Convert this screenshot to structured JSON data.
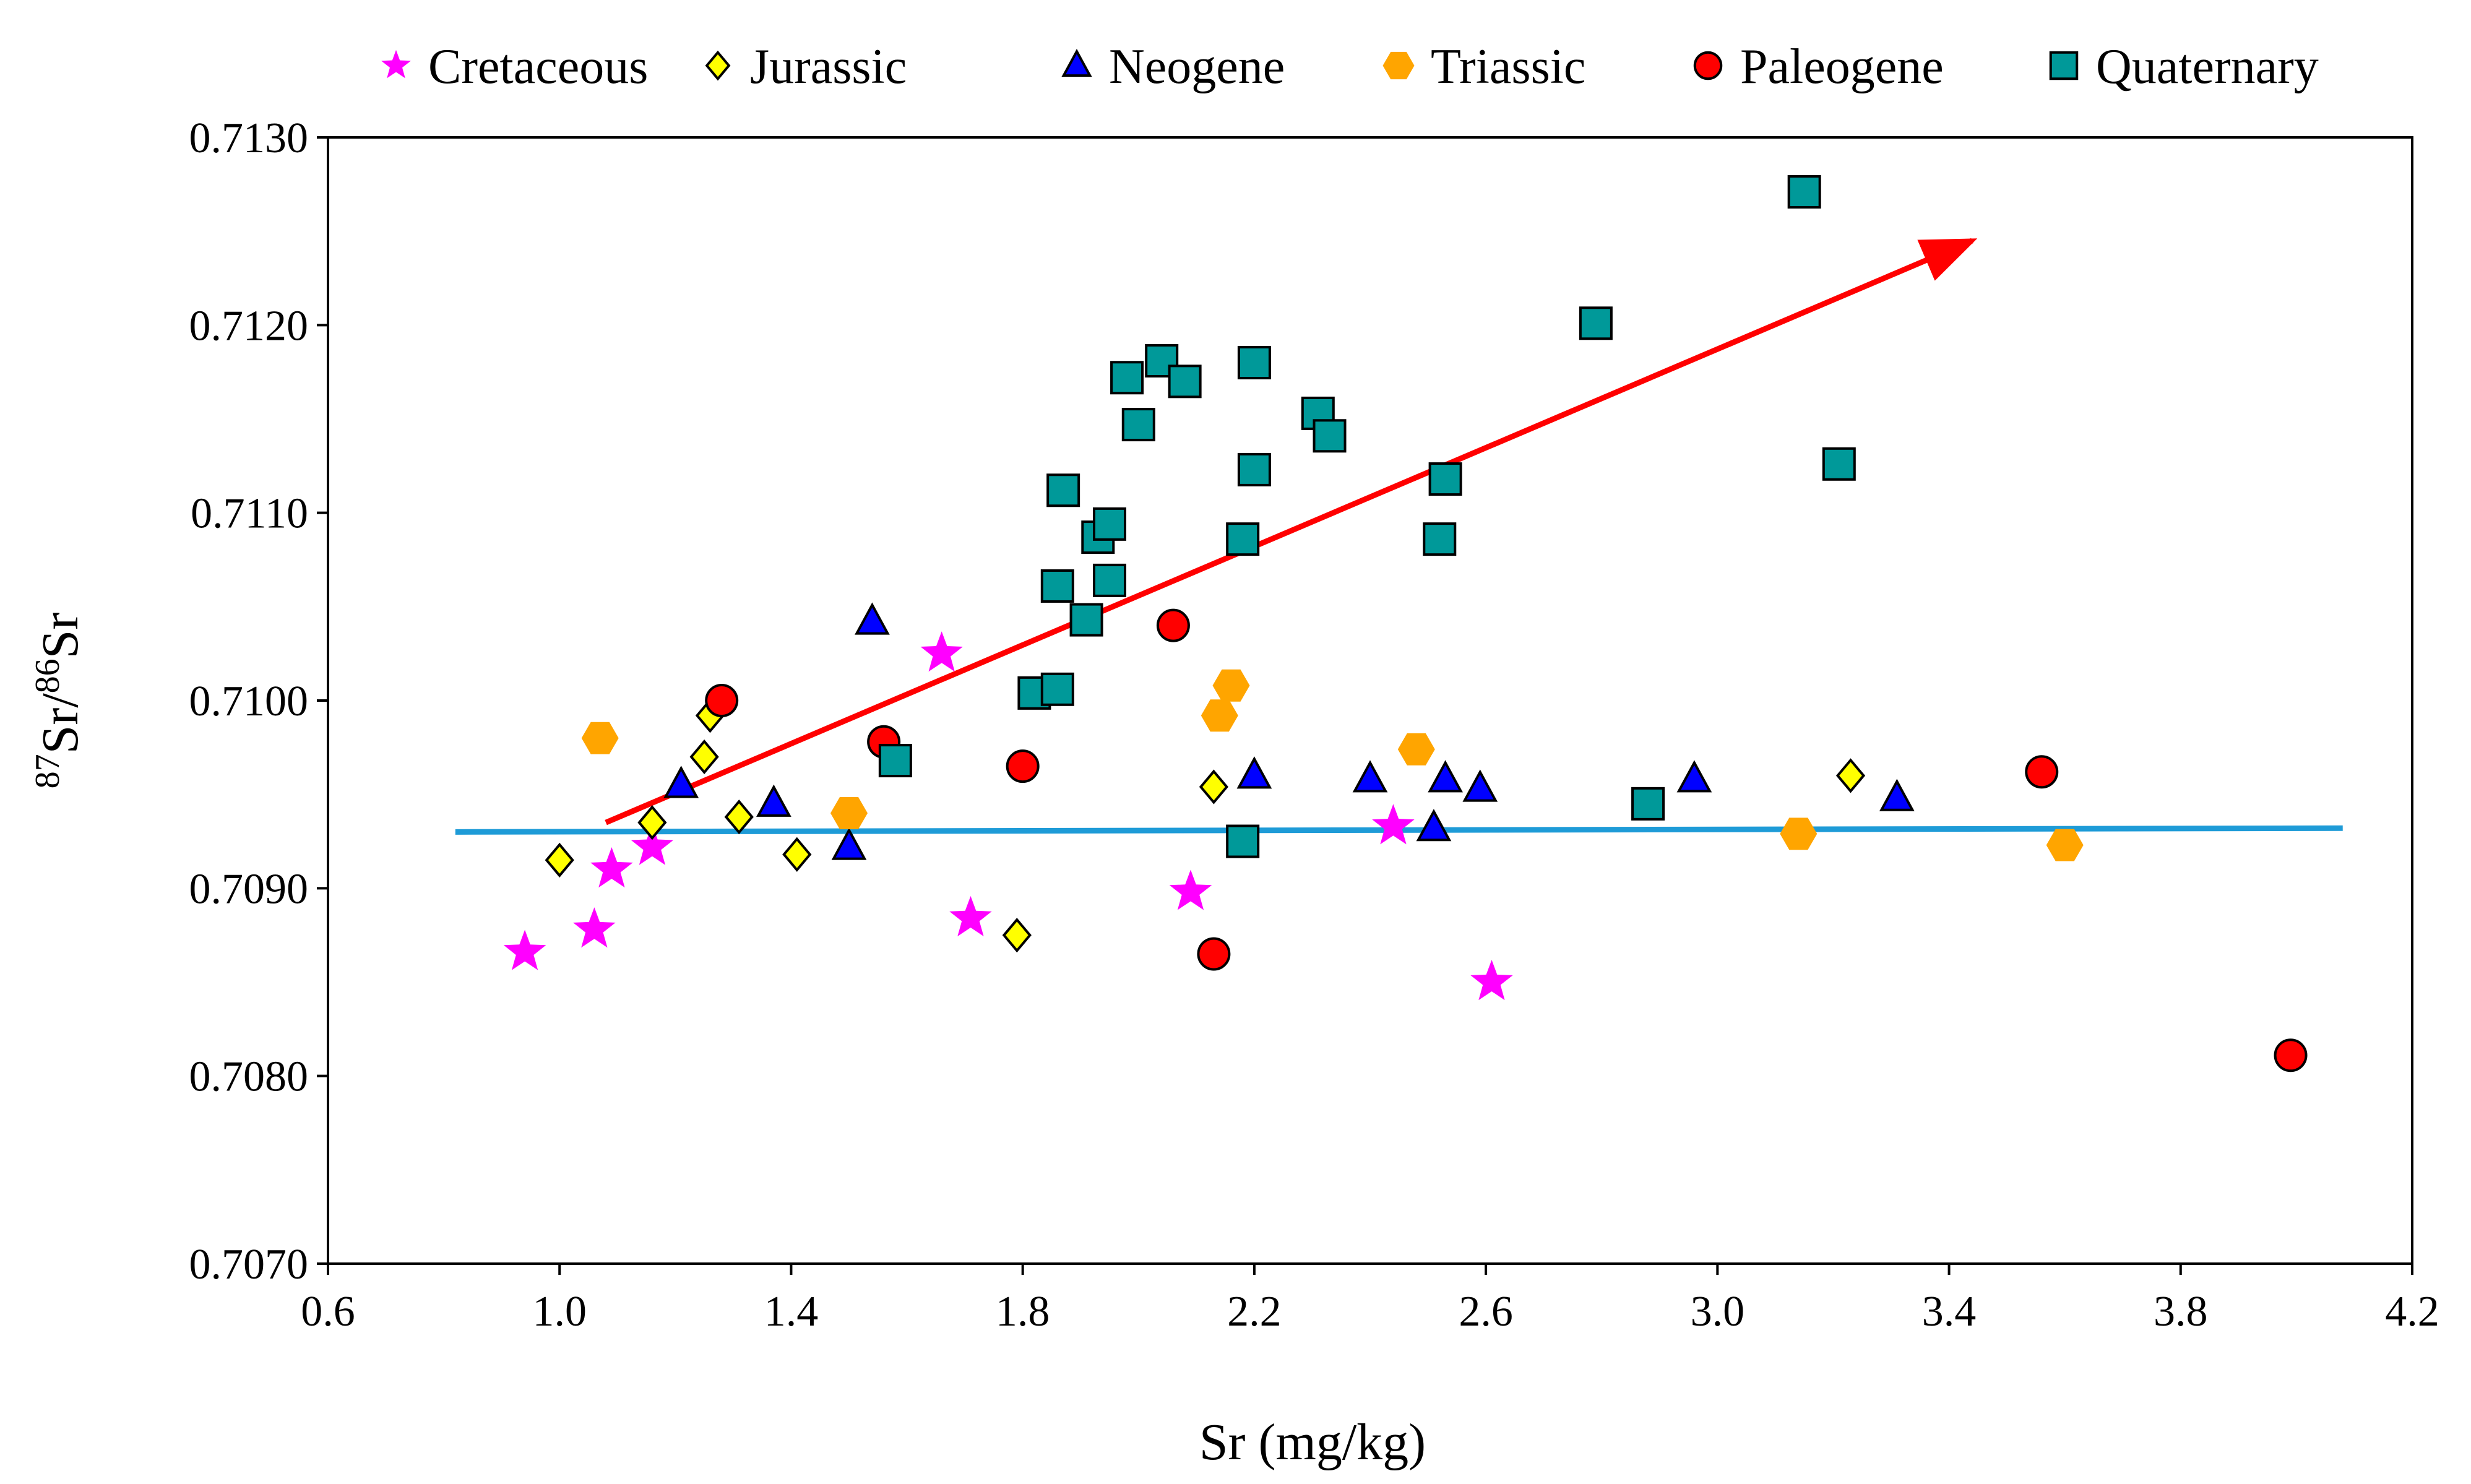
{
  "chart_data": {
    "type": "scatter",
    "xlabel": "Sr (mg/kg)",
    "ylabel": {
      "pre": "87",
      "a": "Sr/",
      "mid": "86",
      "b": "Sr"
    },
    "xlim": [
      0.6,
      4.2
    ],
    "ylim": [
      0.707,
      0.713
    ],
    "x_ticks": [
      "0.6",
      "1.0",
      "1.4",
      "1.8",
      "2.2",
      "2.6",
      "3.0",
      "3.4",
      "3.8",
      "4.2"
    ],
    "x_tick_values": [
      0.6,
      1.0,
      1.4,
      1.8,
      2.2,
      2.6,
      3.0,
      3.4,
      3.8,
      4.2
    ],
    "y_ticks": [
      "0.7070",
      "0.7080",
      "0.7090",
      "0.7100",
      "0.7110",
      "0.7120",
      "0.7130"
    ],
    "y_tick_values": [
      0.707,
      0.708,
      0.709,
      0.71,
      0.711,
      0.712,
      0.713
    ],
    "grid": false,
    "legend_position": "top",
    "series": [
      {
        "name": "Cretaceous",
        "marker": "star",
        "color": "#FF00FF",
        "points": [
          [
            0.94,
            0.70866
          ],
          [
            1.06,
            0.70878
          ],
          [
            1.09,
            0.7091
          ],
          [
            1.16,
            0.70922
          ],
          [
            1.66,
            0.71025
          ],
          [
            1.71,
            0.70884
          ],
          [
            2.09,
            0.70898
          ],
          [
            2.44,
            0.70933
          ],
          [
            2.61,
            0.7085
          ]
        ]
      },
      {
        "name": "Jurassic",
        "marker": "diamond",
        "color": "#FFFF00",
        "points": [
          [
            1.0,
            0.70915
          ],
          [
            1.16,
            0.70935
          ],
          [
            1.25,
            0.7097
          ],
          [
            1.26,
            0.70992
          ],
          [
            1.31,
            0.70938
          ],
          [
            1.41,
            0.70918
          ],
          [
            1.79,
            0.70875
          ],
          [
            2.13,
            0.70954
          ],
          [
            3.23,
            0.7096
          ]
        ]
      },
      {
        "name": "Neogene",
        "marker": "triangle",
        "color": "#0000FF",
        "points": [
          [
            1.21,
            0.70955
          ],
          [
            1.37,
            0.70945
          ],
          [
            1.5,
            0.70922
          ],
          [
            1.54,
            0.71042
          ],
          [
            2.2,
            0.7096
          ],
          [
            2.4,
            0.70958
          ],
          [
            2.51,
            0.70932
          ],
          [
            2.53,
            0.70958
          ],
          [
            2.59,
            0.70953
          ],
          [
            2.96,
            0.70958
          ],
          [
            3.31,
            0.70948
          ]
        ]
      },
      {
        "name": "Triassic",
        "marker": "hexagon",
        "color": "#FFA500",
        "points": [
          [
            1.07,
            0.7098
          ],
          [
            1.5,
            0.7094
          ],
          [
            2.14,
            0.70992
          ],
          [
            2.16,
            0.71008
          ],
          [
            2.48,
            0.70974
          ],
          [
            3.14,
            0.70929
          ],
          [
            3.6,
            0.70923
          ]
        ]
      },
      {
        "name": "Paleogene",
        "marker": "circle",
        "color": "#FF0000",
        "points": [
          [
            1.28,
            0.71
          ],
          [
            1.56,
            0.70978
          ],
          [
            1.8,
            0.70965
          ],
          [
            2.06,
            0.7104
          ],
          [
            2.13,
            0.70865
          ],
          [
            3.56,
            0.70962
          ],
          [
            3.99,
            0.70811
          ]
        ]
      },
      {
        "name": "Quaternary",
        "marker": "square",
        "color": "#009999",
        "points": [
          [
            1.58,
            0.70968
          ],
          [
            1.82,
            0.71004
          ],
          [
            1.86,
            0.71006
          ],
          [
            1.86,
            0.71061
          ],
          [
            1.87,
            0.71112
          ],
          [
            1.91,
            0.71043
          ],
          [
            1.93,
            0.71087
          ],
          [
            1.95,
            0.71094
          ],
          [
            1.95,
            0.71064
          ],
          [
            1.98,
            0.71172
          ],
          [
            2.0,
            0.71147
          ],
          [
            2.04,
            0.71181
          ],
          [
            2.08,
            0.7117
          ],
          [
            2.18,
            0.70925
          ],
          [
            2.18,
            0.71086
          ],
          [
            2.2,
            0.71123
          ],
          [
            2.2,
            0.7118
          ],
          [
            2.31,
            0.71153
          ],
          [
            2.33,
            0.71141
          ],
          [
            2.52,
            0.71086
          ],
          [
            2.53,
            0.71118
          ],
          [
            2.79,
            0.71201
          ],
          [
            2.88,
            0.70945
          ],
          [
            3.15,
            0.71271
          ],
          [
            3.21,
            0.71126
          ]
        ]
      }
    ],
    "lines": [
      {
        "name": "trend-arrow",
        "color": "#FF0000",
        "from": [
          1.08,
          0.70935
        ],
        "to": [
          3.44,
          0.71245
        ],
        "arrow": true
      },
      {
        "name": "seawater-baseline",
        "color": "#1E9BD7",
        "from": [
          0.82,
          0.7093
        ],
        "to": [
          4.08,
          0.70932
        ],
        "arrow": false
      }
    ]
  }
}
